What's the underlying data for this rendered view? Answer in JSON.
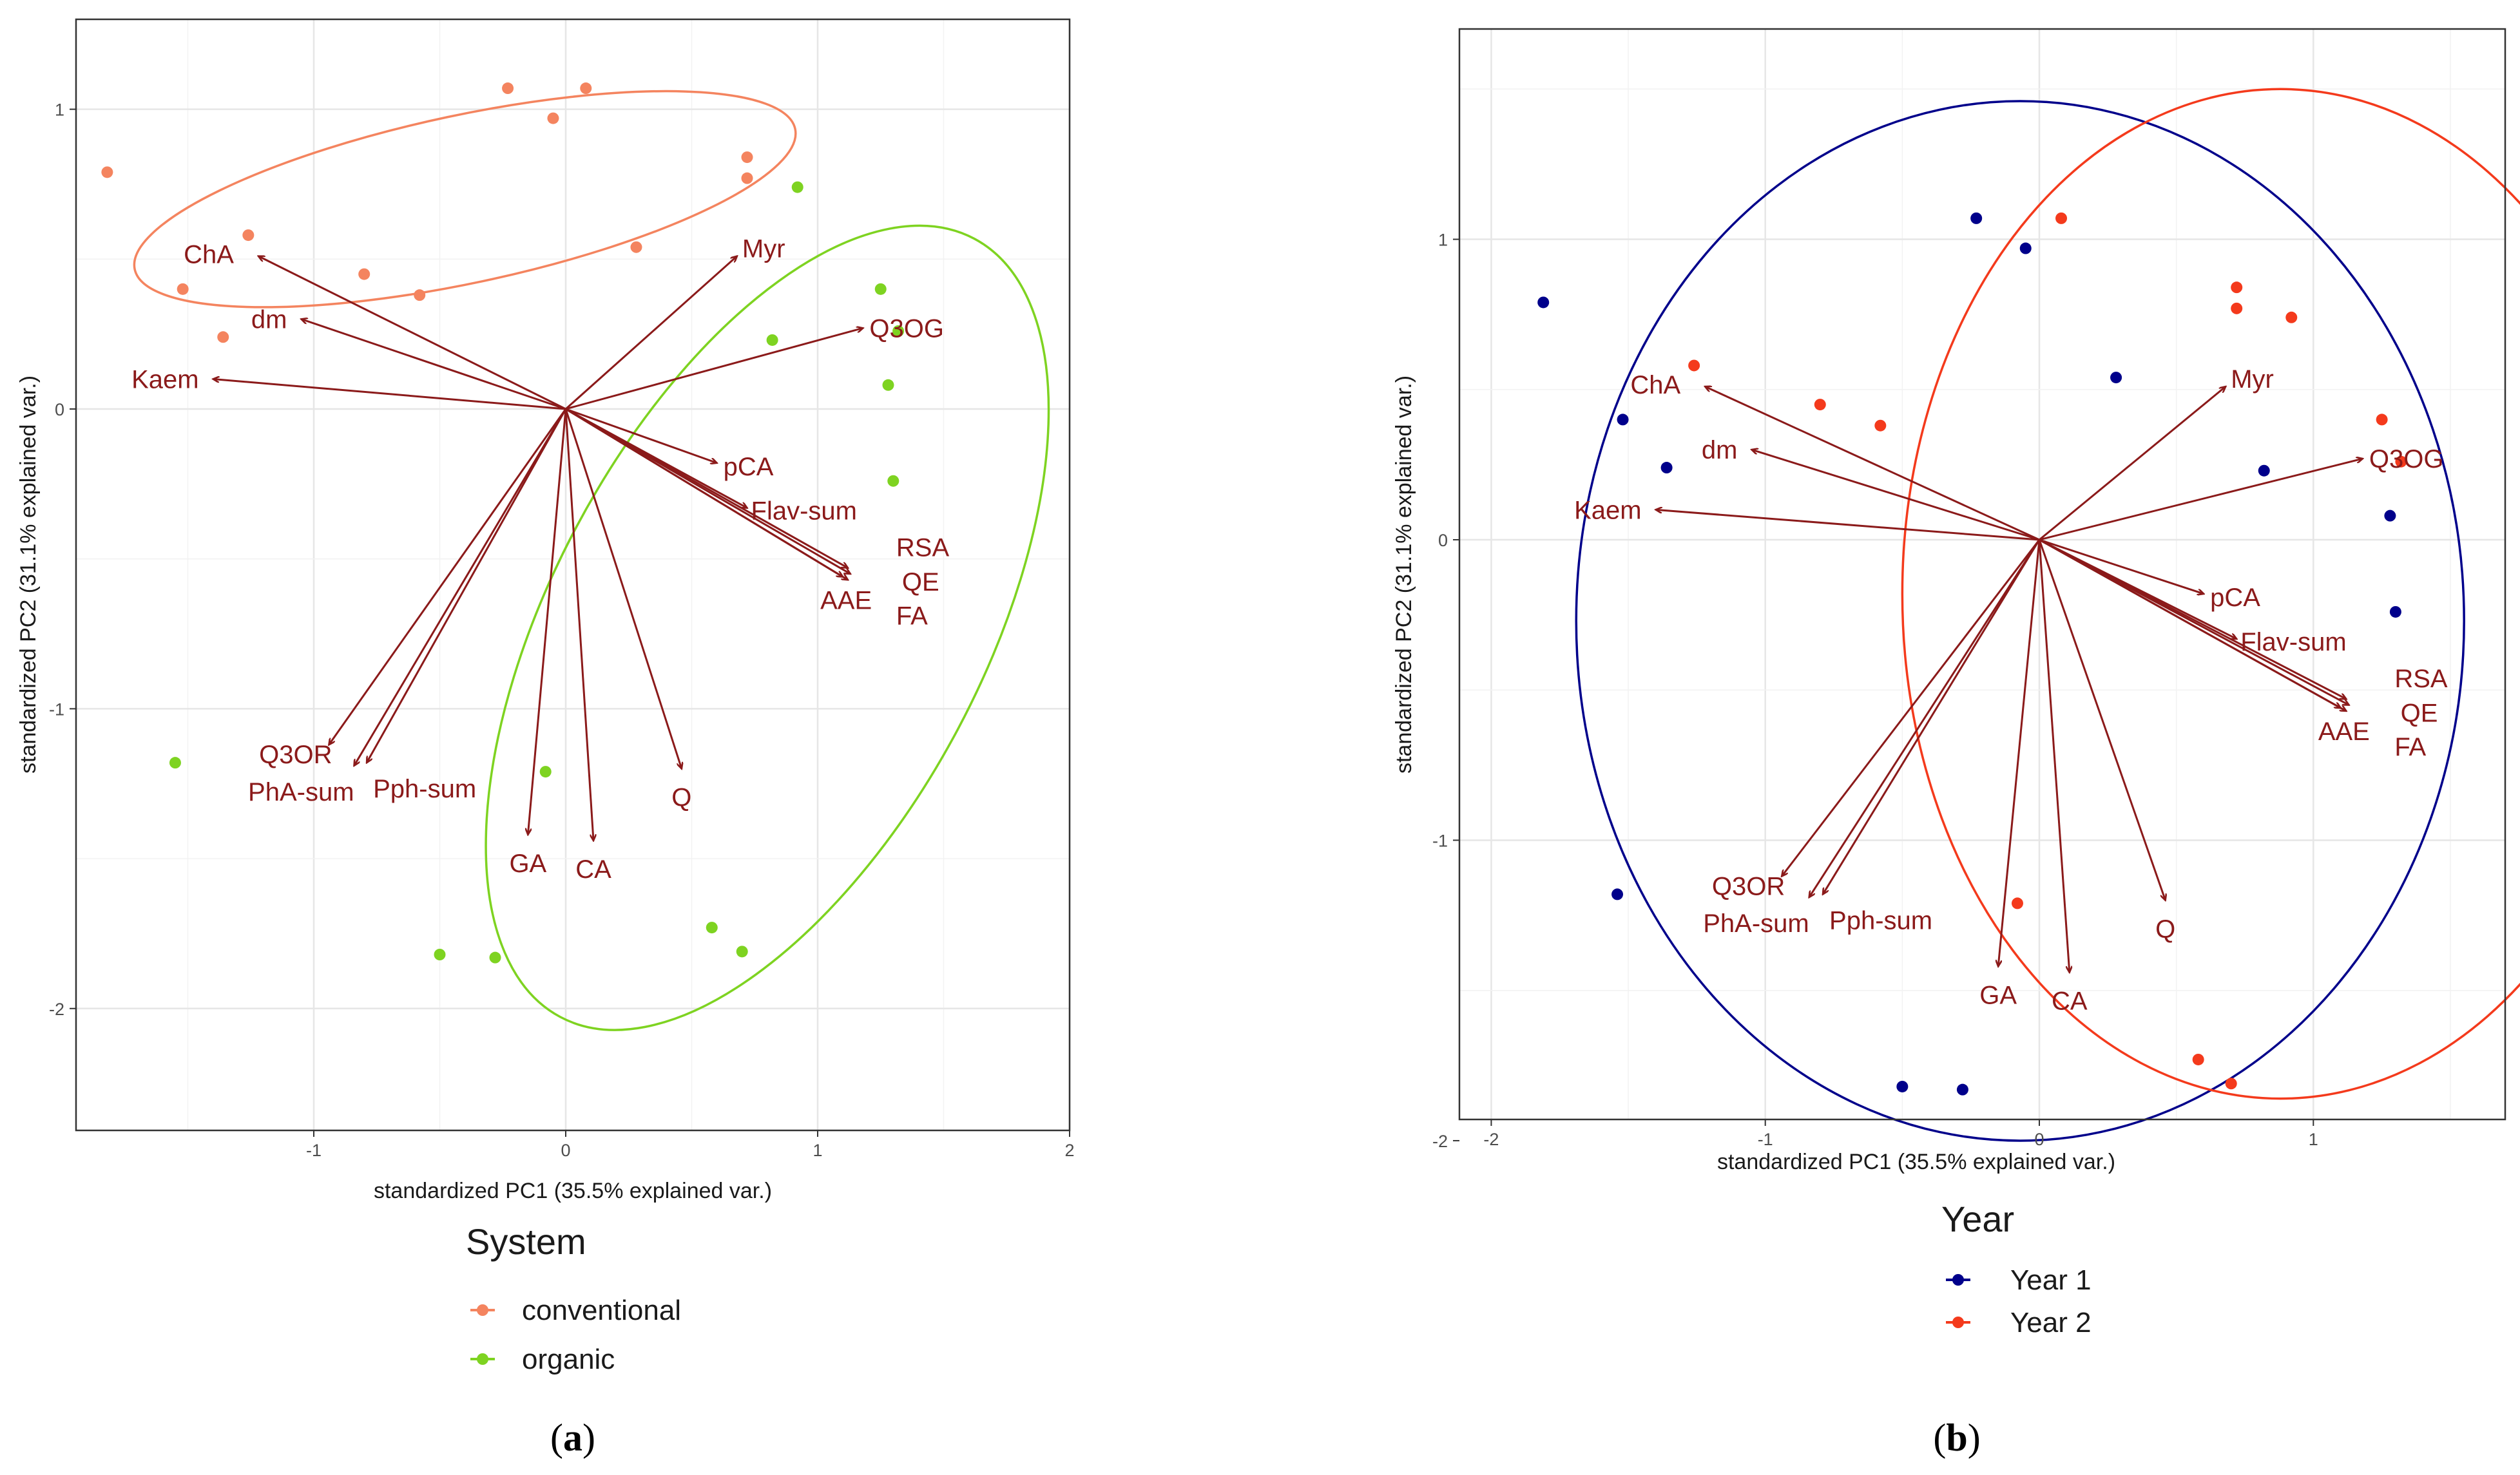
{
  "chart_data": [
    {
      "type": "scatter",
      "panel": "a",
      "caption_letter": "a",
      "xlabel": "standardized PC1 (35.5% explained var.)",
      "ylabel": "standardized PC2 (31.1% explained var.)",
      "xlim": [
        -2.0,
        2.0
      ],
      "ylim": [
        -2.35,
        1.3
      ],
      "xticks": [
        -1,
        0,
        1,
        2
      ],
      "yticks": [
        -2,
        -1,
        0,
        1
      ],
      "legend": {
        "title": "System",
        "position": "bottom"
      },
      "arrow_color": "#8b1a1a",
      "series": [
        {
          "name": "conventional",
          "color": "#f4845f",
          "points": [
            [
              -1.82,
              0.79
            ],
            [
              -1.52,
              0.4
            ],
            [
              -1.36,
              0.24
            ],
            [
              -1.26,
              0.58
            ],
            [
              -0.8,
              0.45
            ],
            [
              -0.58,
              0.38
            ],
            [
              -0.23,
              1.07
            ],
            [
              -0.05,
              0.97
            ],
            [
              0.08,
              1.07
            ],
            [
              0.28,
              0.54
            ],
            [
              0.72,
              0.84
            ],
            [
              0.72,
              0.77
            ]
          ],
          "ellipse": {
            "center": [
              -0.4,
              0.7
            ],
            "rx": 1.34,
            "ry": 0.28,
            "angle_deg": -12
          }
        },
        {
          "name": "organic",
          "color": "#7ed321",
          "points": [
            [
              -1.55,
              -1.18
            ],
            [
              -0.08,
              -1.21
            ],
            [
              -0.5,
              -1.82
            ],
            [
              -0.28,
              -1.83
            ],
            [
              0.58,
              -1.73
            ],
            [
              0.7,
              -1.81
            ],
            [
              0.82,
              0.23
            ],
            [
              0.92,
              0.74
            ],
            [
              1.25,
              0.4
            ],
            [
              1.28,
              0.08
            ],
            [
              1.3,
              -0.24
            ],
            [
              1.32,
              0.26
            ]
          ],
          "ellipse": {
            "center": [
              0.8,
              -0.73
            ],
            "rx": 1.75,
            "ry": 0.72,
            "angle_deg": -62
          }
        }
      ],
      "vectors": [
        {
          "label": "ChA",
          "x": -1.22,
          "y": 0.51
        },
        {
          "label": "dm",
          "x": -1.05,
          "y": 0.3
        },
        {
          "label": "Kaem",
          "x": -1.4,
          "y": 0.1
        },
        {
          "label": "Myr",
          "x": 0.68,
          "y": 0.51
        },
        {
          "label": "Q3OG",
          "x": 1.18,
          "y": 0.27
        },
        {
          "label": "pCA",
          "x": 0.6,
          "y": -0.18
        },
        {
          "label": "Flav-sum",
          "x": 0.72,
          "y": -0.33
        },
        {
          "label": "RSA",
          "x": 1.12,
          "y": -0.53
        },
        {
          "label": "QE",
          "x": 1.13,
          "y": -0.55
        },
        {
          "label": "FA",
          "x": 1.12,
          "y": -0.57
        },
        {
          "label": "AAE",
          "x": 1.1,
          "y": -0.56
        },
        {
          "label": "Q3OR",
          "x": -0.94,
          "y": -1.12
        },
        {
          "label": "PhA-sum",
          "x": -0.84,
          "y": -1.19
        },
        {
          "label": "Pph-sum",
          "x": -0.79,
          "y": -1.18
        },
        {
          "label": "GA",
          "x": -0.15,
          "y": -1.42
        },
        {
          "label": "CA",
          "x": 0.11,
          "y": -1.44
        },
        {
          "label": "Q",
          "x": 0.46,
          "y": -1.2
        }
      ]
    },
    {
      "type": "scatter",
      "panel": "b",
      "caption_letter": "b",
      "xlabel": "standardized PC1 (35.5% explained var.)",
      "ylabel": "standardized PC2 (31.1% explained var.)",
      "xlim": [
        -2.2,
        1.7
      ],
      "ylim": [
        -2.05,
        1.7
      ],
      "xticks": [
        -2,
        -1,
        0,
        1
      ],
      "yticks": [
        -2,
        -1,
        0,
        1
      ],
      "legend": {
        "title": "Year",
        "position": "bottom"
      },
      "arrow_color": "#8b1a1a",
      "series": [
        {
          "name": "Year 1",
          "color": "#00008b",
          "points": [
            [
              -1.81,
              0.79
            ],
            [
              -1.52,
              0.4
            ],
            [
              -1.36,
              0.24
            ],
            [
              -1.54,
              -1.18
            ],
            [
              -0.5,
              -1.82
            ],
            [
              -0.28,
              -1.83
            ],
            [
              -0.23,
              1.07
            ],
            [
              -0.05,
              0.97
            ],
            [
              0.28,
              0.54
            ],
            [
              0.82,
              0.23
            ],
            [
              1.28,
              0.08
            ],
            [
              1.3,
              -0.24
            ]
          ],
          "ellipse": {
            "center": [
              -0.07,
              -0.27
            ],
            "rx": 1.62,
            "ry": 1.73,
            "angle_deg": 0
          }
        },
        {
          "name": "Year 2",
          "color": "#f43a1c",
          "points": [
            [
              -1.26,
              0.58
            ],
            [
              -0.8,
              0.45
            ],
            [
              -0.58,
              0.38
            ],
            [
              0.08,
              1.07
            ],
            [
              -0.08,
              -1.21
            ],
            [
              0.58,
              -1.73
            ],
            [
              0.7,
              -1.81
            ],
            [
              0.72,
              0.84
            ],
            [
              0.72,
              0.77
            ],
            [
              0.92,
              0.74
            ],
            [
              1.25,
              0.4
            ],
            [
              1.32,
              0.26
            ]
          ],
          "ellipse": {
            "center": [
              0.88,
              -0.18
            ],
            "rx": 1.38,
            "ry": 1.68,
            "angle_deg": 0
          }
        }
      ],
      "vectors": [
        {
          "label": "ChA",
          "x": -1.22,
          "y": 0.51
        },
        {
          "label": "dm",
          "x": -1.05,
          "y": 0.3
        },
        {
          "label": "Kaem",
          "x": -1.4,
          "y": 0.1
        },
        {
          "label": "Myr",
          "x": 0.68,
          "y": 0.51
        },
        {
          "label": "Q3OG",
          "x": 1.18,
          "y": 0.27
        },
        {
          "label": "pCA",
          "x": 0.6,
          "y": -0.18
        },
        {
          "label": "Flav-sum",
          "x": 0.72,
          "y": -0.33
        },
        {
          "label": "RSA",
          "x": 1.12,
          "y": -0.53
        },
        {
          "label": "QE",
          "x": 1.13,
          "y": -0.55
        },
        {
          "label": "FA",
          "x": 1.12,
          "y": -0.57
        },
        {
          "label": "AAE",
          "x": 1.1,
          "y": -0.56
        },
        {
          "label": "Q3OR",
          "x": -0.94,
          "y": -1.12
        },
        {
          "label": "PhA-sum",
          "x": -0.84,
          "y": -1.19
        },
        {
          "label": "Pph-sum",
          "x": -0.79,
          "y": -1.18
        },
        {
          "label": "GA",
          "x": -0.15,
          "y": -1.42
        },
        {
          "label": "CA",
          "x": 0.11,
          "y": -1.44
        },
        {
          "label": "Q",
          "x": 0.46,
          "y": -1.2
        }
      ]
    }
  ]
}
